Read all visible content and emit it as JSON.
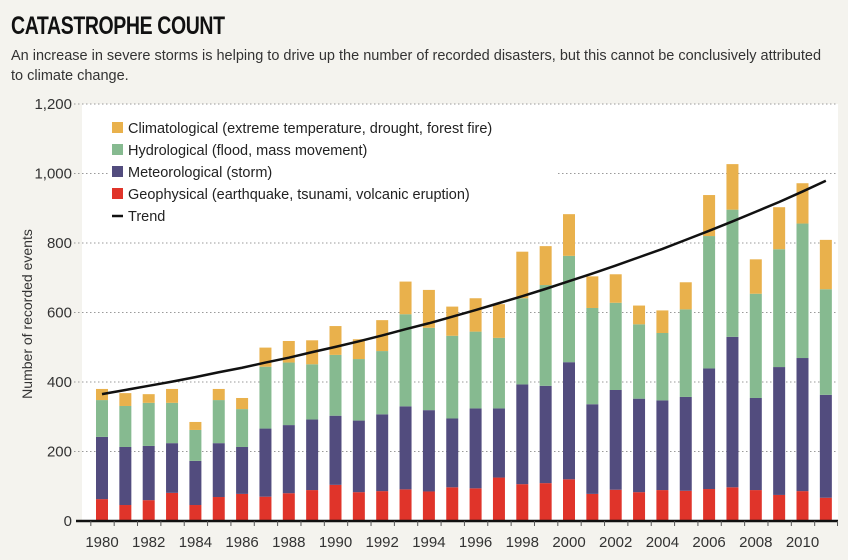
{
  "chart_data": {
    "type": "bar",
    "stacked": true,
    "title": "CATASTROPHE COUNT",
    "subtitle": "An increase in severe storms is helping to drive up the number of recorded disasters, but this cannot be conclusively attributed to climate change.",
    "xlabel": "",
    "ylabel": "Number of recorded events",
    "ylim": [
      0,
      1200
    ],
    "yticks": [
      0,
      200,
      400,
      600,
      800,
      1000,
      1200
    ],
    "ytick_labels": [
      "0",
      "200",
      "400",
      "600",
      "800",
      "1,000",
      "1,200"
    ],
    "grid": true,
    "legend_position": "top-left",
    "categories": [
      1980,
      1981,
      1982,
      1983,
      1984,
      1985,
      1986,
      1987,
      1988,
      1989,
      1990,
      1991,
      1992,
      1993,
      1994,
      1995,
      1996,
      1997,
      1998,
      1999,
      2000,
      2001,
      2002,
      2003,
      2004,
      2005,
      2006,
      2007,
      2008,
      2009,
      2010,
      2011
    ],
    "xtick_labels": [
      "1980",
      "1982",
      "1984",
      "1986",
      "1988",
      "1990",
      "1992",
      "1994",
      "1996",
      "1998",
      "2000",
      "2002",
      "2004",
      "2006",
      "2008",
      "2010"
    ],
    "series": [
      {
        "name": "Geophysical (earthquake, tsunami, volcanic eruption)",
        "color": "#e0342a",
        "values": [
          63,
          46,
          60,
          81,
          46,
          69,
          78,
          70,
          80,
          89,
          104,
          83,
          86,
          91,
          85,
          97,
          94,
          125,
          106,
          109,
          120,
          78,
          90,
          83,
          89,
          87,
          92,
          97,
          89,
          75,
          86,
          67
        ]
      },
      {
        "name": "Meteorological (storm)",
        "color": "#524c7e",
        "values": [
          179,
          167,
          156,
          143,
          127,
          155,
          135,
          196,
          196,
          203,
          199,
          206,
          221,
          239,
          234,
          198,
          230,
          199,
          287,
          280,
          337,
          258,
          287,
          269,
          258,
          270,
          347,
          433,
          265,
          368,
          383,
          296
        ]
      },
      {
        "name": "Hydrological (flood, mass movement)",
        "color": "#86ba90",
        "values": [
          106,
          118,
          124,
          116,
          89,
          124,
          109,
          178,
          180,
          159,
          175,
          177,
          182,
          265,
          237,
          238,
          221,
          203,
          248,
          290,
          306,
          277,
          251,
          214,
          194,
          252,
          381,
          366,
          300,
          339,
          387,
          304
        ]
      },
      {
        "name": "Climatological (extreme temperature, drought, forest fire)",
        "color": "#e9b14c",
        "values": [
          32,
          37,
          25,
          40,
          23,
          32,
          32,
          55,
          62,
          69,
          83,
          57,
          89,
          94,
          109,
          84,
          96,
          97,
          134,
          112,
          120,
          91,
          82,
          54,
          65,
          78,
          118,
          131,
          99,
          121,
          116,
          142
        ]
      }
    ],
    "trend": {
      "name": "Trend",
      "color": "#111111",
      "values": [
        365,
        377,
        389,
        401,
        414,
        428,
        441,
        456,
        470,
        486,
        501,
        517,
        534,
        552,
        569,
        588,
        607,
        627,
        647,
        668,
        690,
        712,
        735,
        759,
        783,
        809,
        835,
        862,
        890,
        918,
        948,
        979
      ]
    },
    "legend_order": [
      3,
      2,
      1,
      0,
      "trend"
    ]
  }
}
